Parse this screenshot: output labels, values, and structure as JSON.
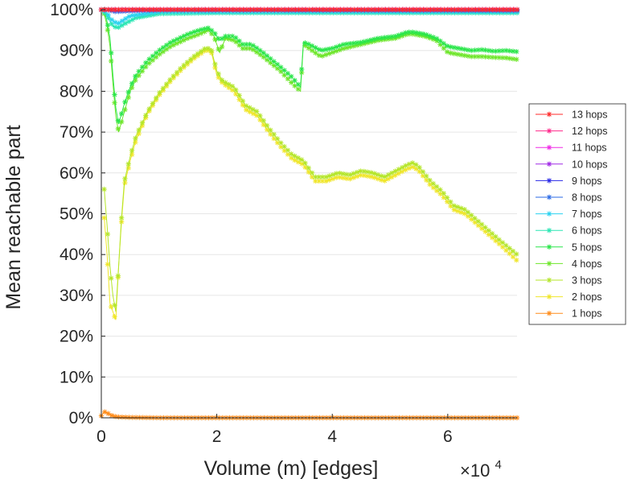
{
  "chart_data": {
    "type": "line",
    "xlabel": "Volume (m) [edges]",
    "ylabel": "Mean reachable part",
    "x_multiplier": {
      "base": "×10",
      "exponent": "4"
    },
    "xlim": [
      0,
      72000
    ],
    "ylim": [
      0,
      100
    ],
    "x_ticks": [
      {
        "value": 0,
        "label": "0"
      },
      {
        "value": 20000,
        "label": "2"
      },
      {
        "value": 40000,
        "label": "4"
      },
      {
        "value": 60000,
        "label": "6"
      }
    ],
    "y_ticks": [
      {
        "value": 0,
        "label": "0%"
      },
      {
        "value": 10,
        "label": "10%"
      },
      {
        "value": 20,
        "label": "20%"
      },
      {
        "value": 30,
        "label": "30%"
      },
      {
        "value": 40,
        "label": "40%"
      },
      {
        "value": 50,
        "label": "50%"
      },
      {
        "value": 60,
        "label": "60%"
      },
      {
        "value": 70,
        "label": "70%"
      },
      {
        "value": 80,
        "label": "80%"
      },
      {
        "value": 90,
        "label": "90%"
      },
      {
        "value": 100,
        "label": "100%"
      }
    ],
    "grid": true,
    "legend_position": "right",
    "series": [
      {
        "name": "13 hops",
        "color": "#ff2a2a",
        "x": [
          0,
          72000
        ],
        "y": [
          100,
          100
        ]
      },
      {
        "name": "12 hops",
        "color": "#ff2a8c",
        "x": [
          0,
          72000
        ],
        "y": [
          100,
          100
        ]
      },
      {
        "name": "11 hops",
        "color": "#f02ae6",
        "x": [
          0,
          72000
        ],
        "y": [
          100,
          100
        ]
      },
      {
        "name": "10 hops",
        "color": "#a02ae6",
        "x": [
          0,
          72000
        ],
        "y": [
          100,
          100
        ]
      },
      {
        "name": "9 hops",
        "color": "#2a2ae6",
        "x": [
          0,
          1000,
          3000,
          10000,
          72000
        ],
        "y": [
          100,
          100,
          100,
          100,
          100
        ]
      },
      {
        "name": "8 hops",
        "color": "#2a6ae6",
        "x": [
          0,
          1000,
          2500,
          5000,
          10000,
          72000
        ],
        "y": [
          100,
          100,
          99.5,
          99.7,
          99.9,
          99.8
        ]
      },
      {
        "name": "7 hops",
        "color": "#2ad2f0",
        "x": [
          0,
          800,
          1800,
          2800,
          5000,
          10000,
          72000
        ],
        "y": [
          100,
          99.5,
          97.5,
          96.5,
          98.5,
          99.5,
          99.5
        ]
      },
      {
        "name": "6 hops",
        "color": "#2ae6b4",
        "x": [
          0,
          800,
          2000,
          2800,
          4000,
          6000,
          10000,
          20000,
          72000
        ],
        "y": [
          100,
          99,
          96,
          95.5,
          96.5,
          98,
          99,
          99.2,
          99.2
        ]
      },
      {
        "name": "5 hops",
        "color": "#2ae64a",
        "x": [
          500,
          1000,
          1500,
          2000,
          2500,
          3000,
          4000,
          5000,
          6000,
          8000,
          10000,
          12000,
          15000,
          17000,
          18500,
          19500,
          20500,
          21500,
          23000,
          24500,
          26000,
          28000,
          31000,
          33000,
          34500,
          35000,
          36000,
          38000,
          40000,
          42000,
          45000,
          48000,
          51000,
          53000,
          54000,
          56000,
          58000,
          60000,
          62000,
          64000,
          66000,
          68000,
          70000,
          72000
        ],
        "y": [
          100,
          97,
          93,
          84,
          76,
          72,
          77,
          81,
          84,
          87.5,
          90,
          92,
          94,
          95,
          95.5,
          94.5,
          92.5,
          93.5,
          93.5,
          91.5,
          91.5,
          89.5,
          86,
          83.5,
          81,
          92,
          91.5,
          90,
          90.5,
          91.5,
          92,
          93,
          93.5,
          94.5,
          94.5,
          94,
          93,
          91,
          90.5,
          90,
          90.2,
          89.8,
          90,
          89.7
        ]
      },
      {
        "name": "4 hops",
        "color": "#6ee62a",
        "x": [
          500,
          1000,
          1500,
          2000,
          2500,
          3000,
          4000,
          5000,
          6000,
          8000,
          10000,
          12000,
          15000,
          17000,
          18500,
          19500,
          20500,
          21500,
          23000,
          24500,
          26000,
          28000,
          31000,
          33000,
          34500,
          35000,
          36000,
          38000,
          40000,
          42000,
          45000,
          48000,
          51000,
          53000,
          54000,
          56000,
          58000,
          60000,
          62000,
          64000,
          66000,
          68000,
          70000,
          72000
        ],
        "y": [
          99,
          96,
          91,
          82,
          74,
          70,
          75,
          80,
          83,
          86.5,
          89,
          91,
          93,
          94,
          95,
          93.5,
          89.5,
          93,
          92.5,
          90.5,
          90.5,
          88.5,
          85,
          82,
          80,
          91.5,
          90.5,
          88.5,
          89.5,
          90.5,
          91.5,
          92.5,
          93,
          94,
          94,
          93.5,
          92.5,
          89.5,
          89,
          88.5,
          88.5,
          88.3,
          88.2,
          87.8
        ]
      },
      {
        "name": "3 hops",
        "color": "#b4e62a",
        "x": [
          500,
          1000,
          1500,
          2000,
          2500,
          3000,
          3500,
          4000,
          5000,
          6000,
          8000,
          10000,
          12000,
          14000,
          16000,
          18000,
          19000,
          20000,
          21000,
          23000,
          25000,
          27000,
          29000,
          31000,
          33000,
          35000,
          37000,
          39000,
          41000,
          43000,
          45000,
          47000,
          49000,
          51000,
          53000,
          54000,
          55000,
          57000,
          59000,
          61000,
          63000,
          65000,
          67000,
          69000,
          72000
        ],
        "y": [
          56,
          47,
          37,
          30,
          26,
          37,
          49,
          58,
          64,
          69,
          75,
          79.5,
          83,
          86,
          88.5,
          90.5,
          90.5,
          85,
          82.5,
          81,
          76.5,
          75,
          71,
          67.5,
          64.5,
          63,
          59,
          59,
          60,
          59.5,
          60.5,
          60,
          59,
          60.5,
          62,
          62.5,
          61.5,
          58,
          55.5,
          52,
          51,
          48.5,
          46,
          43.5,
          40
        ]
      },
      {
        "name": "2 hops",
        "color": "#f0e62a",
        "x": [
          500,
          1000,
          1500,
          2000,
          2500,
          3000,
          3500,
          4000,
          5000,
          6000,
          8000,
          10000,
          12000,
          14000,
          16000,
          18000,
          19000,
          20000,
          21000,
          23000,
          25000,
          27000,
          29000,
          31000,
          33000,
          35000,
          37000,
          39000,
          41000,
          43000,
          45000,
          47000,
          49000,
          51000,
          53000,
          54000,
          55000,
          57000,
          59000,
          61000,
          63000,
          65000,
          67000,
          69000,
          72000
        ],
        "y": [
          49,
          40,
          28,
          26,
          24,
          37,
          48,
          57,
          63,
          68,
          74.5,
          79,
          82.5,
          85.5,
          88,
          90,
          90,
          84,
          82,
          80,
          75.5,
          74,
          70,
          66.5,
          63.5,
          62,
          58,
          58,
          59,
          58.5,
          59.5,
          59,
          58,
          59.5,
          61,
          61.5,
          60.5,
          57,
          54.5,
          51,
          50,
          47.5,
          45,
          42.5,
          38.5
        ]
      },
      {
        "name": "1 hops",
        "color": "#ff8c1a",
        "x": [
          0,
          500,
          1000,
          1500,
          2000,
          3000,
          5000,
          10000,
          20000,
          72000
        ],
        "y": [
          0.5,
          1.5,
          1.2,
          0.8,
          0.4,
          0.2,
          0.1,
          0,
          0,
          0
        ]
      }
    ]
  }
}
